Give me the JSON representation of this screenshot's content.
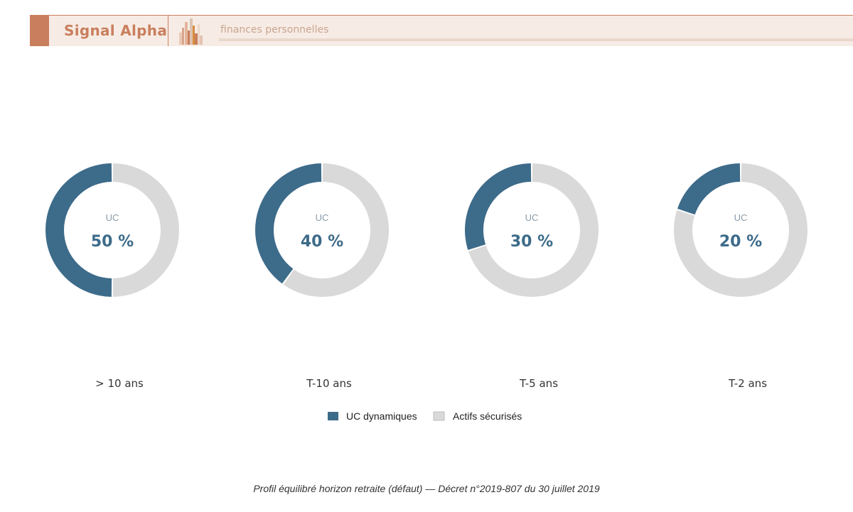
{
  "header": {
    "brand": "Signal Alpha",
    "subtitle": "finances personnelles",
    "colors": {
      "accent": "#c97f5e",
      "background": "#f7ece5"
    }
  },
  "chart_data": {
    "type": "pie",
    "variant": "donut",
    "categories": [
      "> 10 ans",
      "T-10 ans",
      "T-5 ans",
      "T-2 ans"
    ],
    "center_label": "UC",
    "series": [
      {
        "name": "UC dynamiques",
        "values": [
          50,
          40,
          30,
          20
        ],
        "color": "#3d6b8a"
      },
      {
        "name": "Actifs sécurisés",
        "values": [
          50,
          60,
          70,
          80
        ],
        "color": "#d9d9d9"
      }
    ],
    "value_labels": [
      "50 %",
      "40 %",
      "30 %",
      "20 %"
    ],
    "legend_position": "bottom-center",
    "footnote": "Profil équilibré horizon retraite (défaut) — Décret n°2019-807 du 30 juillet 2019"
  }
}
